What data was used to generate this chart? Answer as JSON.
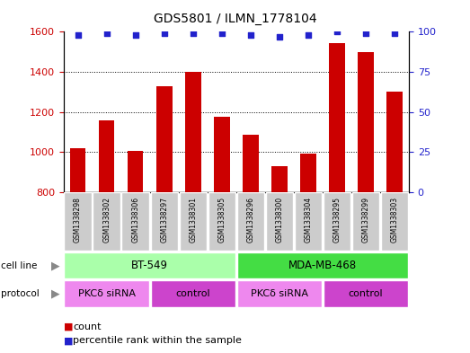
{
  "title": "GDS5801 / ILMN_1778104",
  "samples": [
    "GSM1338298",
    "GSM1338302",
    "GSM1338306",
    "GSM1338297",
    "GSM1338301",
    "GSM1338305",
    "GSM1338296",
    "GSM1338300",
    "GSM1338304",
    "GSM1338295",
    "GSM1338299",
    "GSM1338303"
  ],
  "counts": [
    1020,
    1160,
    1005,
    1330,
    1400,
    1175,
    1085,
    930,
    995,
    1545,
    1500,
    1300
  ],
  "percentile_ranks": [
    98,
    99,
    98,
    99,
    99,
    99,
    98,
    97,
    98,
    100,
    99,
    99
  ],
  "ylim_left": [
    800,
    1600
  ],
  "ylim_right": [
    0,
    100
  ],
  "yticks_left": [
    800,
    1000,
    1200,
    1400,
    1600
  ],
  "yticks_right": [
    0,
    25,
    50,
    75,
    100
  ],
  "bar_color": "#cc0000",
  "dot_color": "#2222cc",
  "cell_line_groups": [
    {
      "label": "BT-549",
      "start": 0,
      "end": 5,
      "color": "#aaffaa"
    },
    {
      "label": "MDA-MB-468",
      "start": 6,
      "end": 11,
      "color": "#44dd44"
    }
  ],
  "protocol_groups": [
    {
      "label": "PKCδ siRNA",
      "start": 0,
      "end": 2,
      "color": "#ee88ee"
    },
    {
      "label": "control",
      "start": 3,
      "end": 5,
      "color": "#cc44cc"
    },
    {
      "label": "PKCδ siRNA",
      "start": 6,
      "end": 8,
      "color": "#ee88ee"
    },
    {
      "label": "control",
      "start": 9,
      "end": 11,
      "color": "#cc44cc"
    }
  ],
  "legend_count_color": "#cc0000",
  "legend_pct_color": "#2222cc",
  "grid_color": "#000000",
  "tick_label_color_left": "#cc0000",
  "tick_label_color_right": "#2222cc",
  "background_color": "#ffffff",
  "sample_bg_color": "#cccccc",
  "arrow_color": "#888888"
}
